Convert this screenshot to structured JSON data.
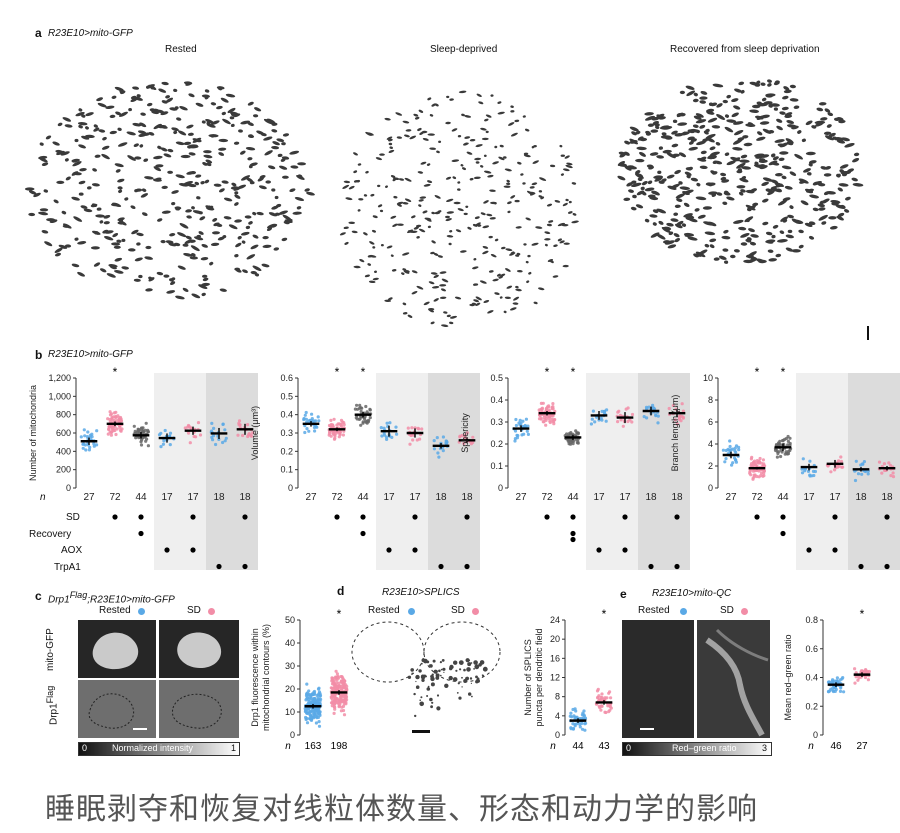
{
  "panel_a": {
    "letter": "a",
    "genotype": "R23E10>mito-GFP",
    "conditions": [
      "Rested",
      "Sleep-deprived",
      "Recovered from sleep deprivation"
    ]
  },
  "panel_b": {
    "letter": "b",
    "genotype": "R23E10>mito-GFP",
    "row_labels": {
      "n": "n",
      "sd": "SD",
      "recovery": "Recovery",
      "aox": "AOX",
      "trpa1": "TrpA1"
    },
    "n_values": [
      "27",
      "72",
      "44",
      "17",
      "17",
      "18",
      "18"
    ]
  },
  "panel_c": {
    "letter": "c",
    "genotype_pre": "Drp1",
    "genotype_sup": "Flag",
    "genotype_post": ";R23E10>mito-GFP",
    "legend_rested": "Rested",
    "legend_sd": "SD",
    "row1": "mito-GFP",
    "row2_pre": "Drp1",
    "row2_sup": "Flag",
    "scale_min": "0",
    "scale_label": "Normalized intensity",
    "scale_max": "1",
    "n_label": "n",
    "n_values": [
      "163",
      "198"
    ]
  },
  "panel_d": {
    "letter": "d",
    "genotype": "R23E10>SPLICS",
    "legend_rested": "Rested",
    "legend_sd": "SD",
    "n_label": "n",
    "n_values": [
      "44",
      "43"
    ]
  },
  "panel_e": {
    "letter": "e",
    "genotype": "R23E10>mito-QC",
    "legend_rested": "Rested",
    "legend_sd": "SD",
    "scale_min": "0",
    "scale_label": "Red–green ratio",
    "scale_max": "3",
    "n_label": "n",
    "n_values": [
      "46",
      "27"
    ]
  },
  "caption": "睡眠剥夺和恢复对线粒体数量、形态和动力学的影响",
  "colors": {
    "rested": "#5aa9e6",
    "sd": "#f28da7",
    "recovery": "#666666",
    "shade_light": "#efefef",
    "shade_dark": "#dcdcdc"
  },
  "chart_data": [
    {
      "type": "scatter",
      "ylabel": "Number of mitochondria",
      "yticks": [
        "0",
        "200",
        "400",
        "600",
        "800",
        "1,000",
        "1,200"
      ],
      "ylim": [
        0,
        1200
      ],
      "means": [
        510,
        700,
        575,
        545,
        625,
        595,
        640
      ],
      "sem": [
        40,
        25,
        35,
        50,
        45,
        60,
        60
      ],
      "significant": [
        false,
        true,
        false,
        false,
        false,
        false,
        false
      ]
    },
    {
      "type": "scatter",
      "ylabel": "Volume (μm³)",
      "yticks": [
        "0",
        "0.1",
        "0.2",
        "0.3",
        "0.4",
        "0.5",
        "0.6"
      ],
      "ylim": [
        0,
        0.6
      ],
      "means": [
        0.35,
        0.32,
        0.4,
        0.31,
        0.3,
        0.23,
        0.26
      ],
      "sem": [
        0.015,
        0.01,
        0.015,
        0.03,
        0.025,
        0.015,
        0.012
      ],
      "significant": [
        false,
        true,
        true,
        false,
        false,
        false,
        false
      ]
    },
    {
      "type": "scatter",
      "ylabel": "Sphericity",
      "yticks": [
        "0",
        "0.1",
        "0.2",
        "0.3",
        "0.4",
        "0.5"
      ],
      "ylim": [
        0,
        0.5
      ],
      "means": [
        0.27,
        0.34,
        0.23,
        0.33,
        0.32,
        0.35,
        0.34
      ],
      "sem": [
        0.015,
        0.01,
        0.012,
        0.02,
        0.025,
        0.02,
        0.015
      ],
      "significant": [
        false,
        true,
        true,
        false,
        false,
        false,
        false
      ]
    },
    {
      "type": "scatter",
      "ylabel": "Branch length (μm)",
      "yticks": [
        "0",
        "2",
        "4",
        "6",
        "8",
        "10"
      ],
      "ylim": [
        0,
        10
      ],
      "means": [
        3.0,
        1.8,
        3.7,
        1.9,
        2.2,
        1.7,
        1.8
      ],
      "sem": [
        0.3,
        0.12,
        0.35,
        0.3,
        0.35,
        0.2,
        0.2
      ],
      "significant": [
        false,
        true,
        true,
        false,
        false,
        false,
        false
      ]
    },
    {
      "type": "scatter",
      "ylabel": "Drp1 fluorescence within mitochondrial contours (%)",
      "yticks": [
        "0",
        "10",
        "20",
        "30",
        "40",
        "50"
      ],
      "ylim": [
        0,
        50
      ],
      "means": [
        12.5,
        18.5
      ],
      "significant": [
        false,
        true
      ]
    },
    {
      "type": "scatter",
      "ylabel": "Number of SPLICS puncta per dendritic field",
      "yticks": [
        "0",
        "4",
        "8",
        "12",
        "16",
        "20",
        "24"
      ],
      "ylim": [
        0,
        24
      ],
      "means": [
        3.0,
        6.8
      ],
      "significant": [
        false,
        true
      ]
    },
    {
      "type": "scatter",
      "ylabel": "Mean red–green ratio",
      "yticks": [
        "0",
        "0.2",
        "0.4",
        "0.6",
        "0.8"
      ],
      "ylim": [
        0,
        0.8
      ],
      "means": [
        0.35,
        0.42
      ],
      "significant": [
        false,
        true
      ]
    }
  ]
}
